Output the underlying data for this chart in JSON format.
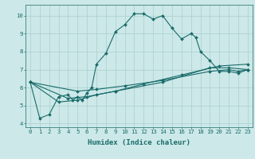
{
  "title": "",
  "xlabel": "Humidex (Indice chaleur)",
  "xlim": [
    -0.5,
    23.5
  ],
  "ylim": [
    3.8,
    10.6
  ],
  "xticks": [
    0,
    1,
    2,
    3,
    4,
    5,
    6,
    7,
    8,
    9,
    10,
    11,
    12,
    13,
    14,
    15,
    16,
    17,
    18,
    19,
    20,
    21,
    22,
    23
  ],
  "yticks": [
    4,
    5,
    6,
    7,
    8,
    9,
    10
  ],
  "bg_color": "#cce8e8",
  "line_color": "#1a6b6b",
  "grid_color": "#aacfcf",
  "font_color": "#1a6b6b",
  "tick_fontsize": 5.2,
  "label_fontsize": 6.5,
  "main_x": [
    0,
    1,
    2,
    3,
    4,
    4.5,
    5,
    5.5,
    6,
    6.5,
    7,
    8,
    9,
    10,
    11,
    12,
    13,
    14,
    15,
    16,
    17,
    17.5,
    18,
    19,
    20,
    21,
    22,
    23
  ],
  "main_y": [
    6.3,
    4.3,
    4.5,
    5.5,
    5.6,
    5.3,
    5.5,
    5.3,
    5.7,
    6.0,
    7.3,
    7.9,
    9.1,
    9.5,
    10.1,
    10.1,
    9.8,
    10.0,
    9.3,
    8.7,
    9.0,
    8.8,
    8.0,
    7.5,
    6.9,
    6.9,
    6.8,
    7.0
  ],
  "line2_x": [
    0,
    5,
    7,
    10,
    14,
    19,
    21,
    22,
    23
  ],
  "line2_y": [
    6.3,
    5.8,
    5.9,
    6.1,
    6.4,
    6.9,
    7.0,
    6.9,
    7.0
  ],
  "line3_x": [
    0,
    4,
    6,
    9,
    14,
    19,
    21,
    23
  ],
  "line3_y": [
    6.3,
    5.4,
    5.5,
    5.8,
    6.3,
    7.1,
    7.1,
    7.0
  ],
  "line4_x": [
    0,
    3,
    5,
    7,
    9,
    12,
    16,
    20,
    23
  ],
  "line4_y": [
    6.3,
    5.2,
    5.3,
    5.6,
    5.8,
    6.2,
    6.7,
    7.2,
    7.3
  ]
}
